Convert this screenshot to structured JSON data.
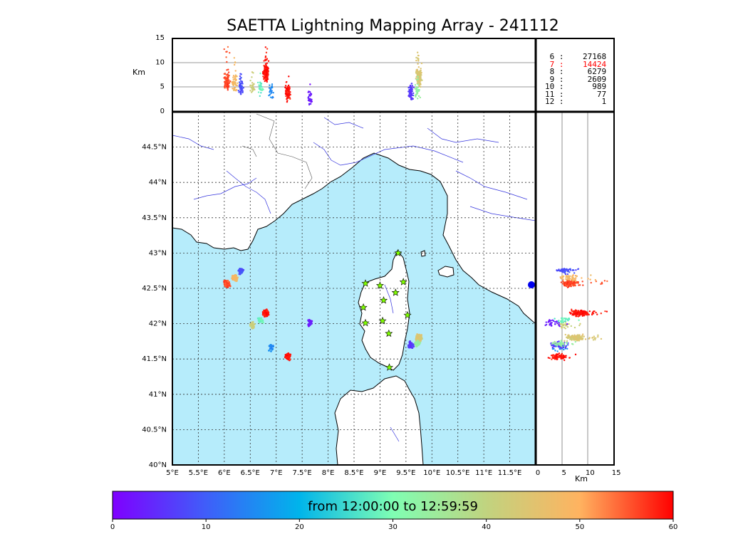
{
  "title": "SAETTA Lightning Mapping Array - 241112",
  "colorbar_label": "from 12:00:00 to 12:59:59",
  "colorbar_ticks": [
    "0",
    "10",
    "20",
    "30",
    "40",
    "50",
    "60"
  ],
  "station_counts": [
    {
      "n": "6",
      "count": "27168",
      "color": "#000000"
    },
    {
      "n": "7",
      "count": "14424",
      "color": "#ff0000"
    },
    {
      "n": "8",
      "count": "6279",
      "color": "#000000"
    },
    {
      "n": "9",
      "count": "2609",
      "color": "#000000"
    },
    {
      "n": "10",
      "count": "989",
      "color": "#000000"
    },
    {
      "n": "11",
      "count": "77",
      "color": "#000000"
    },
    {
      "n": "12",
      "count": "1",
      "color": "#000000"
    }
  ],
  "colors": {
    "sea": "#b6ecfb",
    "land": "#ffffff",
    "rivers": "#3333dd",
    "stations": "#80ff00"
  },
  "chart_data": {
    "type": "scatter",
    "title": "SAETTA Lightning Mapping Array - 241112",
    "map": {
      "lon_range": [
        5,
        12
      ],
      "lat_range": [
        40,
        45
      ],
      "lon_ticks": [
        "5°E",
        "5.5°E",
        "6°E",
        "6.5°E",
        "7°E",
        "7.5°E",
        "8°E",
        "8.5°E",
        "9°E",
        "9.5°E",
        "10°E",
        "10.5°E",
        "11°E",
        "11.5°E"
      ],
      "lat_ticks": [
        "40°N",
        "40.5°N",
        "41°N",
        "41.5°N",
        "42°N",
        "42.5°N",
        "43°N",
        "43.5°N",
        "44°N",
        "44.5°N"
      ],
      "grid": true
    },
    "altitude_panel": {
      "ylabel": "Km",
      "ylim": [
        0,
        15
      ],
      "yticks": [
        "0",
        "5",
        "10",
        "15"
      ]
    },
    "side_panel": {
      "xlabel": "Km",
      "xlim": [
        0,
        15
      ],
      "xticks": [
        "0",
        "5",
        "10",
        "15"
      ]
    },
    "colorscale": {
      "label": "from 12:00:00 to 12:59:59",
      "range": [
        0,
        60
      ],
      "map": "rainbow"
    },
    "stations": [
      {
        "lon": 9.35,
        "lat": 43.0
      },
      {
        "lon": 8.72,
        "lat": 42.57
      },
      {
        "lon": 9.0,
        "lat": 42.54
      },
      {
        "lon": 9.45,
        "lat": 42.59
      },
      {
        "lon": 9.3,
        "lat": 42.44
      },
      {
        "lon": 9.07,
        "lat": 42.33
      },
      {
        "lon": 8.68,
        "lat": 42.23
      },
      {
        "lon": 9.53,
        "lat": 42.12
      },
      {
        "lon": 8.72,
        "lat": 42.01
      },
      {
        "lon": 9.05,
        "lat": 42.04
      },
      {
        "lon": 9.17,
        "lat": 41.86
      },
      {
        "lon": 9.18,
        "lat": 41.38
      }
    ],
    "clusters": [
      {
        "lon": 6.05,
        "lat": 42.57,
        "time_min": 56,
        "n": 120,
        "alt": 6,
        "altmax": 13
      },
      {
        "lon": 6.2,
        "lat": 42.65,
        "time_min": 48,
        "n": 60,
        "alt": 6,
        "altmax": 12
      },
      {
        "lon": 6.32,
        "lat": 42.75,
        "time_min": 8,
        "n": 60,
        "alt": 5,
        "altmax": 8
      },
      {
        "lon": 6.8,
        "lat": 42.15,
        "time_min": 59,
        "n": 200,
        "alt": 8,
        "altmax": 14
      },
      {
        "lon": 6.55,
        "lat": 41.98,
        "time_min": 42,
        "n": 30,
        "alt": 5,
        "altmax": 8
      },
      {
        "lon": 6.7,
        "lat": 42.05,
        "time_min": 28,
        "n": 30,
        "alt": 5,
        "altmax": 8
      },
      {
        "lon": 6.9,
        "lat": 41.66,
        "time_min": 15,
        "n": 25,
        "alt": 4,
        "altmax": 6
      },
      {
        "lon": 7.22,
        "lat": 41.53,
        "time_min": 59,
        "n": 80,
        "alt": 4,
        "altmax": 6
      },
      {
        "lon": 7.65,
        "lat": 42.01,
        "time_min": 3,
        "n": 35,
        "alt": 3,
        "altmax": 5
      },
      {
        "lon": 9.75,
        "lat": 41.8,
        "time_min": 44,
        "n": 160,
        "alt": 7,
        "altmax": 12
      },
      {
        "lon": 9.6,
        "lat": 41.7,
        "time_min": 6,
        "n": 60,
        "alt": 4,
        "altmax": 6
      },
      {
        "lon": 9.72,
        "lat": 41.72,
        "time_min": 33,
        "n": 40,
        "alt": 4,
        "altmax": 7
      }
    ]
  }
}
